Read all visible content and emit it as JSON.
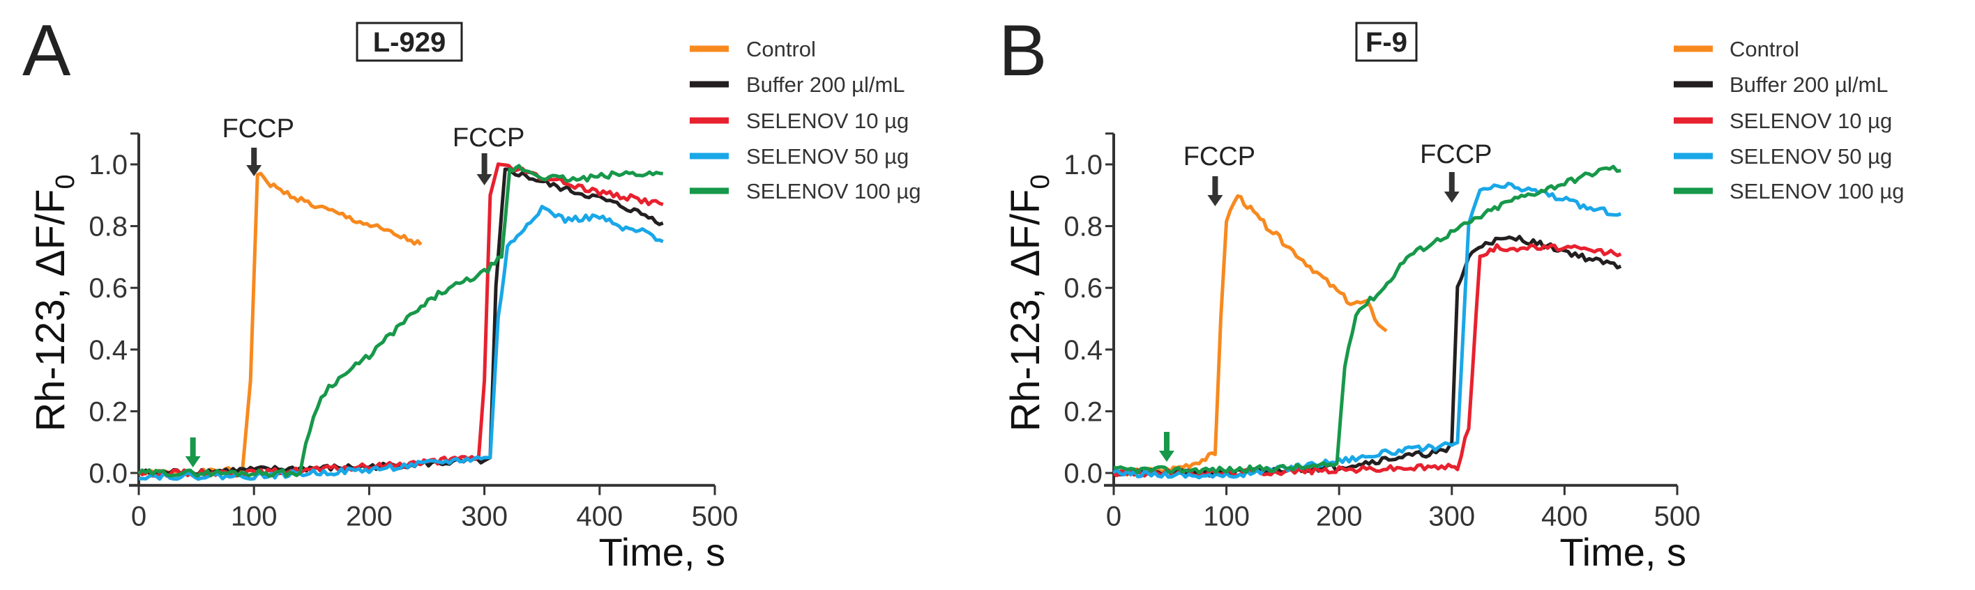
{
  "colors": {
    "Control": "#f7891f",
    "Buffer 200 µl/mL": "#231f20",
    "SELENOV 10 µg": "#e8212e",
    "SELENOV 50 µg": "#19a7e8",
    "SELENOV 100 µg": "#17984a",
    "arrow_dark": "#333333",
    "arrow_green": "#17984a"
  },
  "chart_data": [
    {
      "type": "line",
      "panel": "A",
      "title": "L-929",
      "xlabel": "Time, s",
      "ylabel": "Rh-123, ΔF/F",
      "ylabel_sub": "0",
      "xlim": [
        0,
        500
      ],
      "ylim": [
        -0.04,
        1.1
      ],
      "xticks": [
        "0",
        "100",
        "200",
        "300",
        "400",
        "500"
      ],
      "yticks": [
        "0.0",
        "0.2",
        "0.4",
        "0.6",
        "0.8",
        "1.0"
      ],
      "legend_position": "top-right",
      "annotations": [
        {
          "text": "FCCP",
          "x": 100,
          "color": "dark"
        },
        {
          "text": "FCCP",
          "x": 300,
          "color": "dark"
        },
        {
          "text": "",
          "x": 47,
          "color": "green"
        }
      ],
      "series": [
        {
          "name": "Control",
          "points": [
            [
              0,
              0
            ],
            [
              50,
              0
            ],
            [
              90,
              0.01
            ],
            [
              97,
              0.3
            ],
            [
              103,
              0.97
            ],
            [
              120,
              0.92
            ],
            [
              150,
              0.87
            ],
            [
              180,
              0.83
            ],
            [
              210,
              0.79
            ],
            [
              245,
              0.74
            ]
          ]
        },
        {
          "name": "Buffer 200 µl/mL",
          "points": [
            [
              0,
              0
            ],
            [
              100,
              0.01
            ],
            [
              200,
              0.02
            ],
            [
              300,
              0.04
            ],
            [
              305,
              0.05
            ],
            [
              310,
              0.6
            ],
            [
              318,
              0.98
            ],
            [
              330,
              0.97
            ],
            [
              360,
              0.93
            ],
            [
              400,
              0.89
            ],
            [
              430,
              0.85
            ],
            [
              455,
              0.81
            ]
          ]
        },
        {
          "name": "SELENOV 10 µg",
          "points": [
            [
              0,
              0
            ],
            [
              100,
              0
            ],
            [
              200,
              0.02
            ],
            [
              295,
              0.05
            ],
            [
              300,
              0.3
            ],
            [
              305,
              0.9
            ],
            [
              312,
              1.0
            ],
            [
              330,
              0.98
            ],
            [
              360,
              0.95
            ],
            [
              400,
              0.91
            ],
            [
              430,
              0.89
            ],
            [
              455,
              0.87
            ]
          ]
        },
        {
          "name": "SELENOV 50 µg",
          "points": [
            [
              0,
              -0.01
            ],
            [
              100,
              -0.01
            ],
            [
              200,
              0.01
            ],
            [
              300,
              0.05
            ],
            [
              305,
              0.05
            ],
            [
              312,
              0.5
            ],
            [
              320,
              0.73
            ],
            [
              340,
              0.82
            ],
            [
              350,
              0.86
            ],
            [
              370,
              0.82
            ],
            [
              400,
              0.83
            ],
            [
              420,
              0.79
            ],
            [
              440,
              0.78
            ],
            [
              455,
              0.75
            ]
          ]
        },
        {
          "name": "SELENOV 100 µg",
          "points": [
            [
              0,
              0
            ],
            [
              140,
              0
            ],
            [
              145,
              0.1
            ],
            [
              155,
              0.22
            ],
            [
              165,
              0.28
            ],
            [
              200,
              0.38
            ],
            [
              230,
              0.49
            ],
            [
              260,
              0.58
            ],
            [
              300,
              0.65
            ],
            [
              315,
              0.7
            ],
            [
              322,
              0.98
            ],
            [
              330,
              0.99
            ],
            [
              350,
              0.96
            ],
            [
              380,
              0.95
            ],
            [
              420,
              0.97
            ],
            [
              455,
              0.97
            ]
          ]
        }
      ]
    },
    {
      "type": "line",
      "panel": "B",
      "title": "F-9",
      "xlabel": "Time, s",
      "ylabel": "Rh-123, ΔF/F",
      "ylabel_sub": "0",
      "xlim": [
        0,
        500
      ],
      "ylim": [
        -0.04,
        1.1
      ],
      "xticks": [
        "0",
        "100",
        "200",
        "300",
        "400",
        "500"
      ],
      "yticks": [
        "0.0",
        "0.2",
        "0.4",
        "0.6",
        "0.8",
        "1.0"
      ],
      "legend_position": "top-right",
      "annotations": [
        {
          "text": "FCCP",
          "x": 90,
          "color": "dark"
        },
        {
          "text": "FCCP",
          "x": 300,
          "color": "dark"
        },
        {
          "text": "",
          "x": 47,
          "color": "green"
        }
      ],
      "series": [
        {
          "name": "Control",
          "points": [
            [
              0,
              0
            ],
            [
              50,
              0.01
            ],
            [
              70,
              0.03
            ],
            [
              90,
              0.06
            ],
            [
              95,
              0.5
            ],
            [
              100,
              0.82
            ],
            [
              110,
              0.9
            ],
            [
              130,
              0.82
            ],
            [
              150,
              0.75
            ],
            [
              180,
              0.65
            ],
            [
              210,
              0.55
            ],
            [
              225,
              0.55
            ],
            [
              235,
              0.48
            ],
            [
              242,
              0.46
            ]
          ]
        },
        {
          "name": "Buffer 200 µl/mL",
          "points": [
            [
              0,
              0
            ],
            [
              100,
              0
            ],
            [
              200,
              0.02
            ],
            [
              250,
              0.05
            ],
            [
              295,
              0.07
            ],
            [
              300,
              0.1
            ],
            [
              305,
              0.6
            ],
            [
              315,
              0.7
            ],
            [
              330,
              0.75
            ],
            [
              360,
              0.76
            ],
            [
              400,
              0.72
            ],
            [
              425,
              0.69
            ],
            [
              450,
              0.67
            ]
          ]
        },
        {
          "name": "SELENOV 10 µg",
          "points": [
            [
              0,
              0
            ],
            [
              100,
              0
            ],
            [
              200,
              0.01
            ],
            [
              300,
              0.02
            ],
            [
              305,
              0.02
            ],
            [
              315,
              0.15
            ],
            [
              325,
              0.7
            ],
            [
              340,
              0.73
            ],
            [
              400,
              0.73
            ],
            [
              450,
              0.71
            ]
          ]
        },
        {
          "name": "SELENOV 50 µg",
          "points": [
            [
              0,
              0
            ],
            [
              100,
              -0.01
            ],
            [
              200,
              0.04
            ],
            [
              250,
              0.07
            ],
            [
              300,
              0.09
            ],
            [
              305,
              0.1
            ],
            [
              315,
              0.8
            ],
            [
              325,
              0.92
            ],
            [
              350,
              0.93
            ],
            [
              380,
              0.91
            ],
            [
              420,
              0.86
            ],
            [
              450,
              0.84
            ]
          ]
        },
        {
          "name": "SELENOV 100 µg",
          "points": [
            [
              0,
              0.01
            ],
            [
              100,
              0.01
            ],
            [
              180,
              0.02
            ],
            [
              198,
              0.03
            ],
            [
              205,
              0.35
            ],
            [
              215,
              0.52
            ],
            [
              240,
              0.6
            ],
            [
              260,
              0.7
            ],
            [
              290,
              0.76
            ],
            [
              320,
              0.82
            ],
            [
              350,
              0.88
            ],
            [
              400,
              0.94
            ],
            [
              440,
              0.99
            ],
            [
              450,
              0.98
            ]
          ]
        }
      ]
    }
  ]
}
